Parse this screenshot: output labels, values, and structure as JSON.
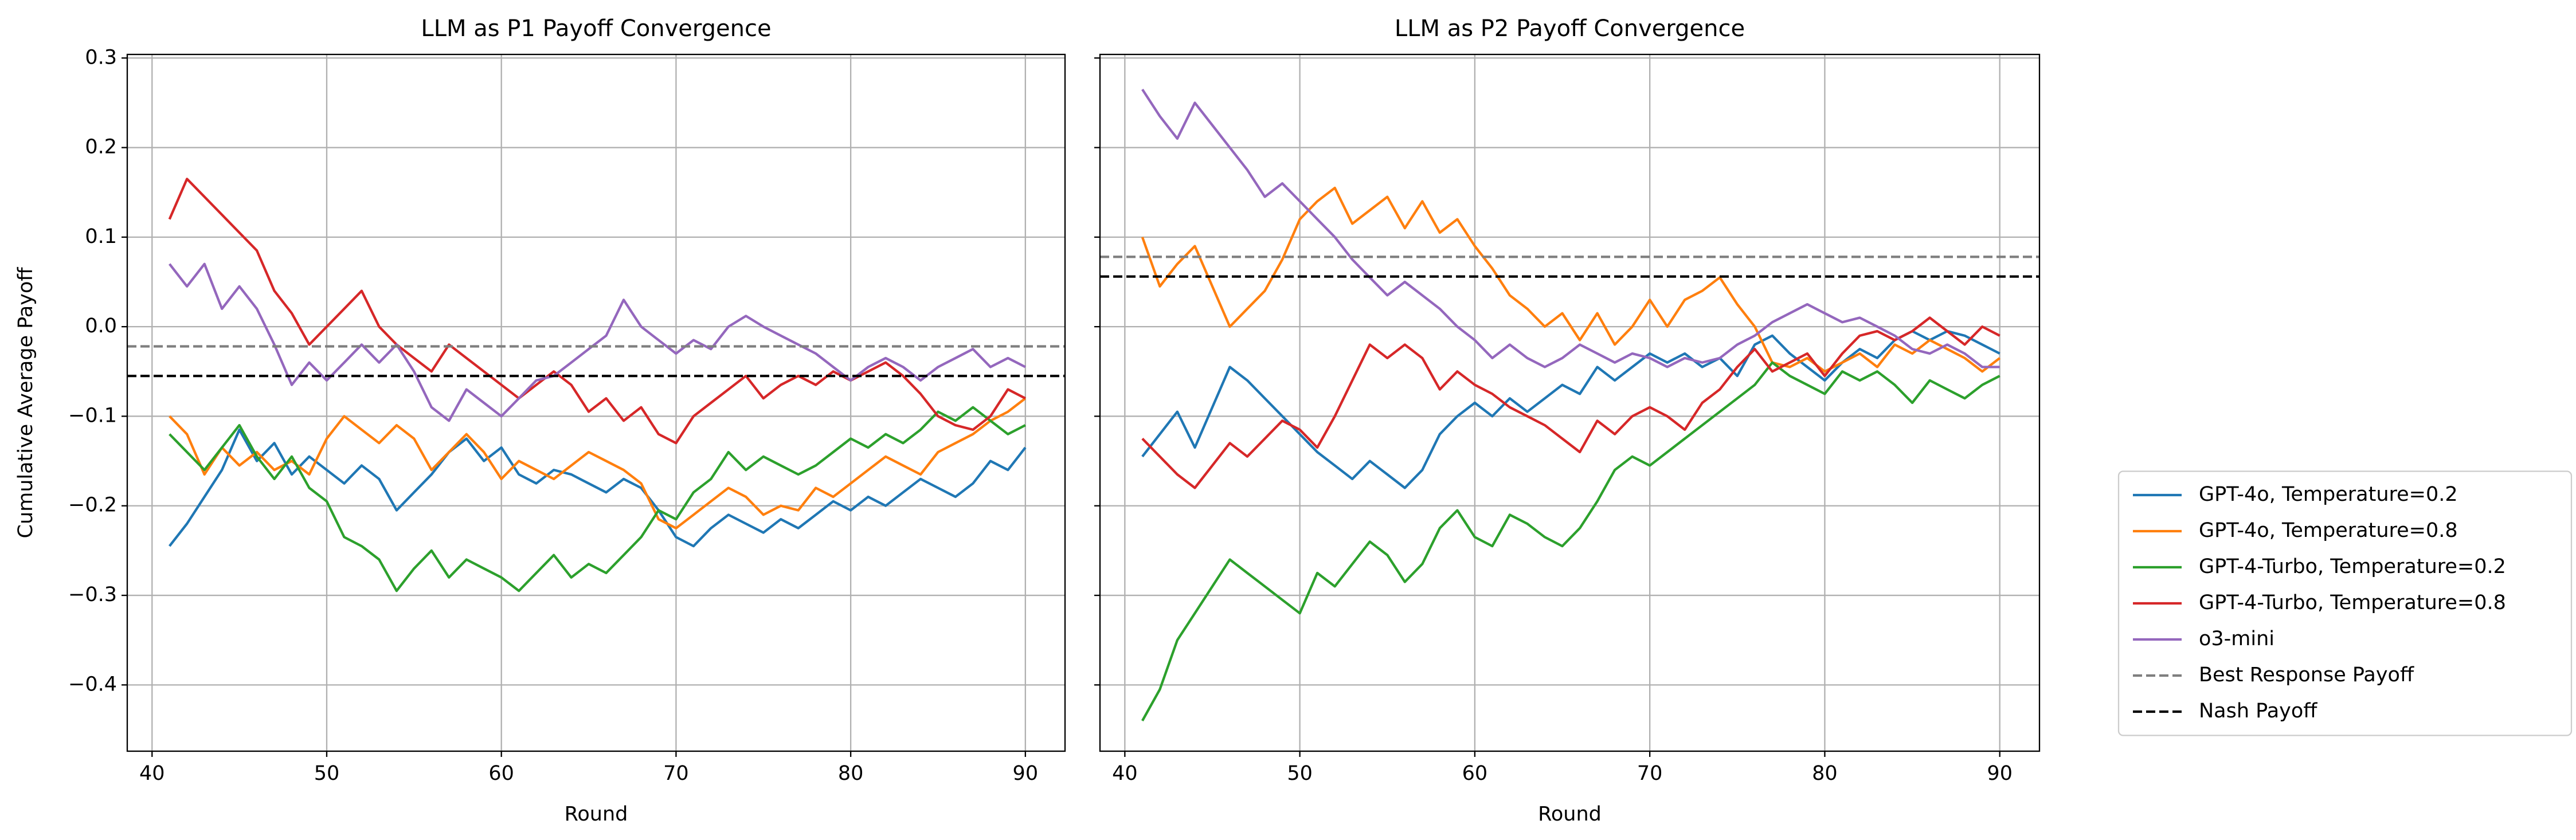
{
  "chart_data": [
    {
      "type": "line",
      "title": "LLM as P1 Payoff Convergence",
      "xlabel": "Round",
      "ylabel": "Cumulative Average Payoff",
      "x": [
        41,
        42,
        43,
        44,
        45,
        46,
        47,
        48,
        49,
        50,
        51,
        52,
        53,
        54,
        55,
        56,
        57,
        58,
        59,
        60,
        61,
        62,
        63,
        64,
        65,
        66,
        67,
        68,
        69,
        70,
        71,
        72,
        73,
        74,
        75,
        76,
        77,
        78,
        79,
        80,
        81,
        82,
        83,
        84,
        85,
        86,
        87,
        88,
        89,
        90
      ],
      "xlim": [
        38.58,
        92.27
      ],
      "xticks": [
        40,
        50,
        60,
        70,
        80,
        90
      ],
      "ylim": [
        -0.474,
        0.304
      ],
      "yticks": [
        {
          "value": -0.4,
          "label": "−0.4"
        },
        {
          "value": -0.3,
          "label": "−0.3"
        },
        {
          "value": -0.2,
          "label": "−0.2"
        },
        {
          "value": -0.1,
          "label": "−0.1"
        },
        {
          "value": 0,
          "label": "0.0"
        },
        0.1,
        0.2,
        0.3
      ],
      "grid": true,
      "legend": "outside right",
      "series": [
        {
          "name": "GPT-4o, Temperature=0.2",
          "color": "#1f77b4",
          "values": [
            -0.245,
            -0.22,
            -0.19,
            -0.16,
            -0.115,
            -0.15,
            -0.13,
            -0.165,
            -0.145,
            -0.16,
            -0.175,
            -0.155,
            -0.17,
            -0.205,
            -0.185,
            -0.165,
            -0.14,
            -0.125,
            -0.15,
            -0.135,
            -0.165,
            -0.175,
            -0.16,
            -0.165,
            -0.175,
            -0.185,
            -0.17,
            -0.18,
            -0.205,
            -0.235,
            -0.245,
            -0.225,
            -0.21,
            -0.22,
            -0.23,
            -0.215,
            -0.225,
            -0.21,
            -0.195,
            -0.205,
            -0.19,
            -0.2,
            -0.185,
            -0.17,
            -0.18,
            -0.19,
            -0.175,
            -0.15,
            -0.16,
            -0.135
          ]
        },
        {
          "name": "GPT-4o, Temperature=0.8",
          "color": "#ff7f0e",
          "values": [
            -0.1,
            -0.12,
            -0.165,
            -0.135,
            -0.155,
            -0.14,
            -0.16,
            -0.15,
            -0.165,
            -0.125,
            -0.1,
            -0.115,
            -0.13,
            -0.11,
            -0.125,
            -0.16,
            -0.14,
            -0.12,
            -0.14,
            -0.17,
            -0.15,
            -0.16,
            -0.17,
            -0.155,
            -0.14,
            -0.15,
            -0.16,
            -0.175,
            -0.215,
            -0.225,
            -0.21,
            -0.195,
            -0.18,
            -0.19,
            -0.21,
            -0.2,
            -0.205,
            -0.18,
            -0.19,
            -0.175,
            -0.16,
            -0.145,
            -0.155,
            -0.165,
            -0.14,
            -0.13,
            -0.12,
            -0.105,
            -0.095,
            -0.08
          ]
        },
        {
          "name": "GPT-4-Turbo, Temperature=0.2",
          "color": "#2ca02c",
          "values": [
            -0.12,
            -0.14,
            -0.16,
            -0.135,
            -0.11,
            -0.145,
            -0.17,
            -0.145,
            -0.18,
            -0.195,
            -0.235,
            -0.245,
            -0.26,
            -0.295,
            -0.27,
            -0.25,
            -0.28,
            -0.26,
            -0.27,
            -0.28,
            -0.295,
            -0.275,
            -0.255,
            -0.28,
            -0.265,
            -0.275,
            -0.255,
            -0.235,
            -0.205,
            -0.215,
            -0.185,
            -0.17,
            -0.14,
            -0.16,
            -0.145,
            -0.155,
            -0.165,
            -0.155,
            -0.14,
            -0.125,
            -0.135,
            -0.12,
            -0.13,
            -0.115,
            -0.095,
            -0.105,
            -0.09,
            -0.105,
            -0.12,
            -0.11
          ]
        },
        {
          "name": "GPT-4-Turbo, Temperature=0.8",
          "color": "#d62728",
          "values": [
            0.12,
            0.165,
            0.145,
            0.125,
            0.105,
            0.085,
            0.04,
            0.015,
            -0.02,
            0.0,
            0.02,
            0.04,
            0.0,
            -0.02,
            -0.035,
            -0.05,
            -0.02,
            -0.035,
            -0.05,
            -0.065,
            -0.08,
            -0.065,
            -0.05,
            -0.065,
            -0.095,
            -0.08,
            -0.105,
            -0.09,
            -0.12,
            -0.13,
            -0.1,
            -0.085,
            -0.07,
            -0.055,
            -0.08,
            -0.065,
            -0.055,
            -0.065,
            -0.05,
            -0.06,
            -0.05,
            -0.04,
            -0.055,
            -0.075,
            -0.1,
            -0.11,
            -0.115,
            -0.1,
            -0.07,
            -0.08
          ]
        },
        {
          "name": "o3-mini",
          "color": "#9467bd",
          "values": [
            0.07,
            0.045,
            0.07,
            0.02,
            0.045,
            0.02,
            -0.02,
            -0.065,
            -0.04,
            -0.06,
            -0.04,
            -0.02,
            -0.04,
            -0.02,
            -0.05,
            -0.09,
            -0.105,
            -0.07,
            -0.085,
            -0.1,
            -0.08,
            -0.06,
            -0.055,
            -0.04,
            -0.025,
            -0.01,
            0.03,
            0.0,
            -0.015,
            -0.03,
            -0.015,
            -0.025,
            0.0,
            0.012,
            0.0,
            -0.01,
            -0.02,
            -0.03,
            -0.045,
            -0.06,
            -0.045,
            -0.035,
            -0.045,
            -0.06,
            -0.045,
            -0.035,
            -0.025,
            -0.045,
            -0.035,
            -0.045
          ]
        }
      ],
      "hlines": [
        {
          "name": "Best Response Payoff",
          "color": "#7f7f7f",
          "value": -0.022,
          "dash": "dashed"
        },
        {
          "name": "Nash Payoff",
          "color": "#000000",
          "value": -0.055,
          "dash": "dashed"
        }
      ]
    },
    {
      "type": "line",
      "title": "LLM as P2 Payoff Convergence",
      "xlabel": "Round",
      "x": [
        41,
        42,
        43,
        44,
        45,
        46,
        47,
        48,
        49,
        50,
        51,
        52,
        53,
        54,
        55,
        56,
        57,
        58,
        59,
        60,
        61,
        62,
        63,
        64,
        65,
        66,
        67,
        68,
        69,
        70,
        71,
        72,
        73,
        74,
        75,
        76,
        77,
        78,
        79,
        80,
        81,
        82,
        83,
        84,
        85,
        86,
        87,
        88,
        89,
        90
      ],
      "xlim": [
        38.58,
        92.27
      ],
      "xticks": [
        40,
        50,
        60,
        70,
        80,
        90
      ],
      "ylim": [
        -0.474,
        0.304
      ],
      "yticks": [
        -0.4,
        -0.3,
        -0.2,
        -0.1,
        0,
        0.1,
        0.2,
        0.3
      ],
      "grid": true,
      "series": [
        {
          "color": "#1f77b4",
          "values": [
            -0.145,
            -0.12,
            -0.095,
            -0.135,
            -0.09,
            -0.045,
            -0.06,
            -0.08,
            -0.1,
            -0.12,
            -0.14,
            -0.155,
            -0.17,
            -0.15,
            -0.165,
            -0.18,
            -0.16,
            -0.12,
            -0.1,
            -0.085,
            -0.1,
            -0.08,
            -0.095,
            -0.08,
            -0.065,
            -0.075,
            -0.045,
            -0.06,
            -0.045,
            -0.03,
            -0.04,
            -0.03,
            -0.045,
            -0.035,
            -0.055,
            -0.02,
            -0.01,
            -0.03,
            -0.045,
            -0.06,
            -0.04,
            -0.025,
            -0.035,
            -0.015,
            -0.005,
            -0.015,
            -0.005,
            -0.01,
            -0.02,
            -0.03
          ]
        },
        {
          "color": "#ff7f0e",
          "values": [
            0.1,
            0.045,
            0.07,
            0.09,
            0.045,
            0.0,
            0.02,
            0.04,
            0.075,
            0.12,
            0.14,
            0.155,
            0.115,
            0.13,
            0.145,
            0.11,
            0.14,
            0.105,
            0.12,
            0.09,
            0.065,
            0.035,
            0.02,
            0.0,
            0.015,
            -0.015,
            0.015,
            -0.02,
            0.0,
            0.03,
            0.0,
            0.03,
            0.04,
            0.055,
            0.025,
            0.0,
            -0.04,
            -0.045,
            -0.035,
            -0.05,
            -0.04,
            -0.03,
            -0.045,
            -0.02,
            -0.03,
            -0.015,
            -0.025,
            -0.035,
            -0.05,
            -0.035
          ]
        },
        {
          "color": "#2ca02c",
          "values": [
            -0.44,
            -0.405,
            -0.35,
            -0.32,
            -0.29,
            -0.26,
            -0.275,
            -0.29,
            -0.305,
            -0.32,
            -0.275,
            -0.29,
            -0.265,
            -0.24,
            -0.255,
            -0.285,
            -0.265,
            -0.225,
            -0.205,
            -0.235,
            -0.245,
            -0.21,
            -0.22,
            -0.235,
            -0.245,
            -0.225,
            -0.195,
            -0.16,
            -0.145,
            -0.155,
            -0.14,
            -0.125,
            -0.11,
            -0.095,
            -0.08,
            -0.065,
            -0.04,
            -0.055,
            -0.065,
            -0.075,
            -0.05,
            -0.06,
            -0.05,
            -0.065,
            -0.085,
            -0.06,
            -0.07,
            -0.08,
            -0.065,
            -0.055
          ]
        },
        {
          "color": "#d62728",
          "values": [
            -0.125,
            -0.145,
            -0.165,
            -0.18,
            -0.155,
            -0.13,
            -0.145,
            -0.125,
            -0.105,
            -0.115,
            -0.135,
            -0.1,
            -0.06,
            -0.02,
            -0.035,
            -0.02,
            -0.035,
            -0.07,
            -0.05,
            -0.065,
            -0.075,
            -0.09,
            -0.1,
            -0.11,
            -0.125,
            -0.14,
            -0.105,
            -0.12,
            -0.1,
            -0.09,
            -0.1,
            -0.115,
            -0.085,
            -0.07,
            -0.045,
            -0.025,
            -0.05,
            -0.04,
            -0.03,
            -0.055,
            -0.03,
            -0.01,
            -0.005,
            -0.015,
            -0.005,
            0.01,
            -0.005,
            -0.02,
            0.0,
            -0.01
          ]
        },
        {
          "color": "#9467bd",
          "values": [
            0.265,
            0.235,
            0.21,
            0.25,
            0.225,
            0.2,
            0.175,
            0.145,
            0.16,
            0.14,
            0.12,
            0.1,
            0.075,
            0.055,
            0.035,
            0.05,
            0.035,
            0.02,
            0.0,
            -0.015,
            -0.035,
            -0.02,
            -0.035,
            -0.045,
            -0.035,
            -0.02,
            -0.03,
            -0.04,
            -0.03,
            -0.035,
            -0.045,
            -0.035,
            -0.04,
            -0.035,
            -0.02,
            -0.01,
            0.005,
            0.015,
            0.025,
            0.015,
            0.005,
            0.01,
            0.0,
            -0.01,
            -0.025,
            -0.03,
            -0.02,
            -0.03,
            -0.045,
            -0.045
          ]
        }
      ],
      "hlines": [
        {
          "color": "#7f7f7f",
          "value": 0.078,
          "dash": "dashed"
        },
        {
          "color": "#000000",
          "value": 0.056,
          "dash": "dashed"
        }
      ]
    }
  ]
}
